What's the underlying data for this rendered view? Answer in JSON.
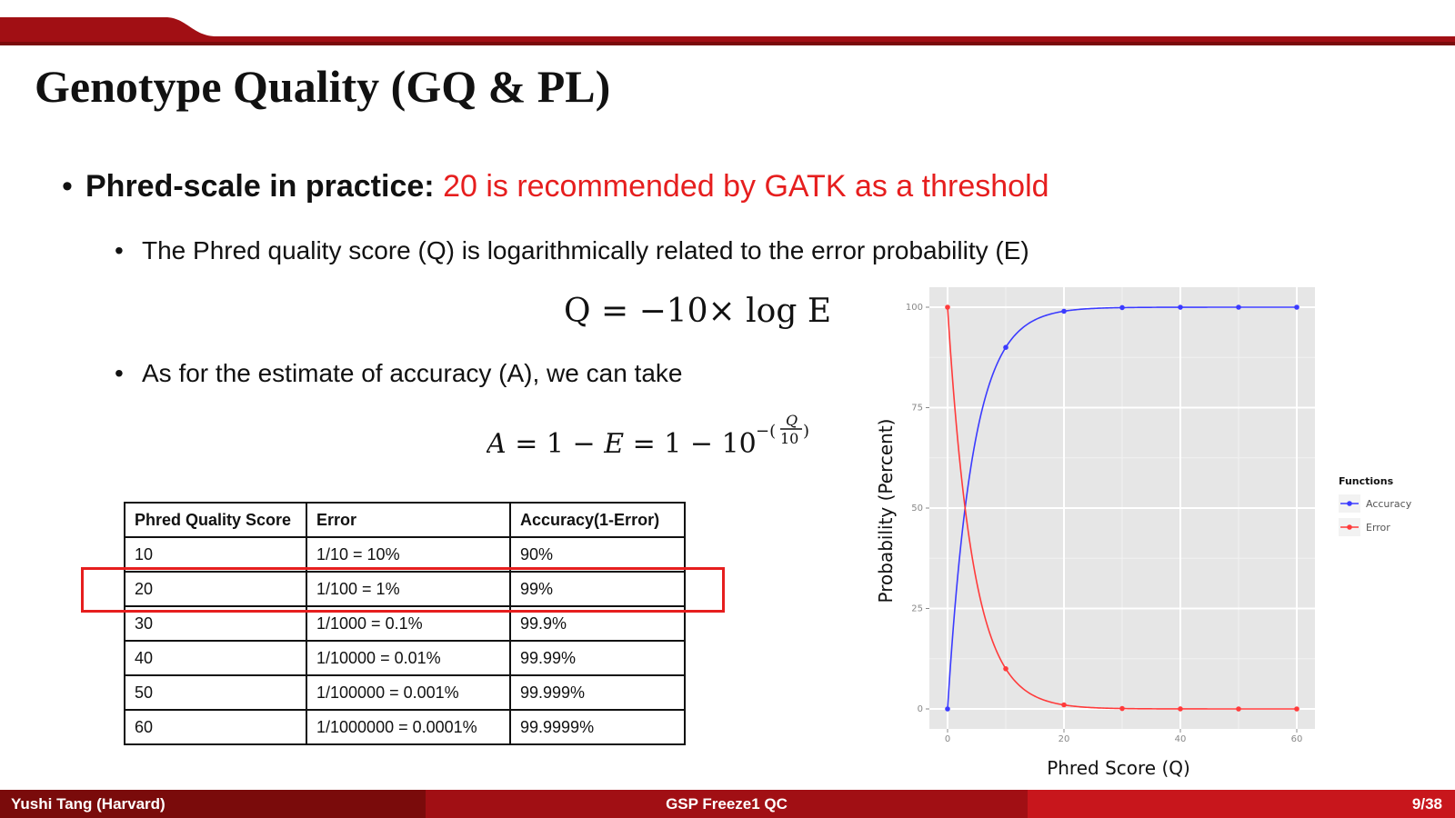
{
  "slide": {
    "title": "Genotype Quality (GQ & PL)",
    "bullet_main_lead": "Phred-scale in practice:",
    "bullet_main_highlight": "20 is recommended by GATK as a threshold",
    "bullet_sub_1": "The Phred quality score (Q) is logarithmically related to the error probability (E)",
    "formula_q": "Q = −10× log E",
    "bullet_sub_2": "As for the estimate of accuracy (A), we can take",
    "formula_a": "A = 1 − E = 1 − 10^−(Q/10)"
  },
  "table": {
    "headers": [
      "Phred Quality Score",
      "Error",
      "Accuracy(1-Error)"
    ],
    "rows": [
      [
        "10",
        "1/10 = 10%",
        "90%"
      ],
      [
        "20",
        "1/100 = 1%",
        "99%"
      ],
      [
        "30",
        "1/1000 = 0.1%",
        "99.9%"
      ],
      [
        "40",
        "1/10000 = 0.01%",
        "99.99%"
      ],
      [
        "50",
        "1/100000 = 0.001%",
        "99.999%"
      ],
      [
        "60",
        "1/1000000 = 0.0001%",
        "99.9999%"
      ]
    ],
    "highlighted_row": "20"
  },
  "chart_data": {
    "type": "line",
    "xlabel": "Phred Score (Q)",
    "ylabel": "Probability (Percent)",
    "xlim": [
      0,
      60
    ],
    "ylim": [
      0,
      100
    ],
    "x_ticks": [
      "0",
      "20",
      "40",
      "60"
    ],
    "y_ticks": [
      "0",
      "25",
      "50",
      "75",
      "100"
    ],
    "grid": true,
    "legend_title": "Functions",
    "legend_position": "right",
    "x": [
      0,
      10,
      20,
      30,
      40,
      50,
      60
    ],
    "series": [
      {
        "name": "Accuracy",
        "color": "#3b3bff",
        "values": [
          0,
          90,
          99,
          99.9,
          99.99,
          99.999,
          99.9999
        ]
      },
      {
        "name": "Error",
        "color": "#ff3b3b",
        "values": [
          100,
          10,
          1,
          0.1,
          0.01,
          0.001,
          0.0001
        ]
      }
    ]
  },
  "footer": {
    "author": "Yushi Tang (Harvard)",
    "center": "GSP Freeze1 QC",
    "page": "9/38"
  },
  "colors": {
    "brand_red": "#a10f14",
    "accent_red": "#e61e1e"
  }
}
